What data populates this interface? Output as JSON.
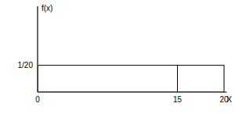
{
  "chart_data": {
    "type": "histogram",
    "x_label": "X",
    "y_label": "f(x)",
    "bins": [
      0,
      15,
      20
    ],
    "values": [
      0.05,
      0.05
    ],
    "color": "#000000",
    "xlim": [
      0,
      20.3
    ],
    "xticks": [
      0,
      15,
      20
    ],
    "ylim": [
      0,
      0.16
    ],
    "yticks": [
      {
        "value": 0.05,
        "label": "1/20"
      }
    ],
    "grid": false
  }
}
